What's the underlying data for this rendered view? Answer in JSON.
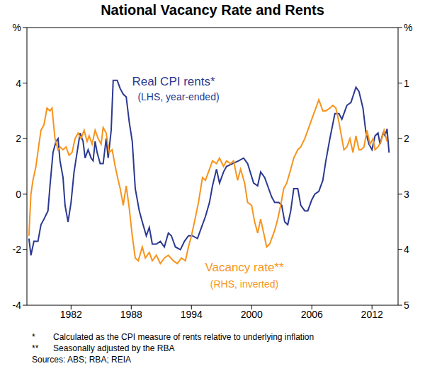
{
  "chart_data": {
    "type": "line",
    "title": "National Vacancy Rate and Rents",
    "xlim": [
      1977.6,
      2014.6
    ],
    "xticks": [
      1982,
      1988,
      1994,
      2000,
      2006,
      2012
    ],
    "ylim": [
      -4,
      6
    ],
    "yticks": [
      -4,
      -2,
      0,
      2,
      4,
      {
        "value": 6,
        "label": "%"
      }
    ],
    "y2lim": [
      5,
      0
    ],
    "y2ticks": [
      5,
      4,
      3,
      2,
      1,
      {
        "value": 0,
        "label": "%"
      }
    ],
    "grid": false,
    "series": [
      {
        "name": "Real CPI rents*",
        "note": "(LHS, year-ended)",
        "color": "#2b3990",
        "axis": "y",
        "x": [
          1977.8,
          1978.0,
          1978.3,
          1978.7,
          1979.0,
          1979.3,
          1979.7,
          1979.9,
          1980.2,
          1980.5,
          1980.7,
          1980.9,
          1981.2,
          1981.4,
          1981.7,
          1982.0,
          1982.3,
          1982.6,
          1982.9,
          1983.2,
          1983.4,
          1983.7,
          1984.0,
          1984.2,
          1984.4,
          1984.6,
          1984.9,
          1985.2,
          1985.5,
          1985.7,
          1986.0,
          1986.2,
          1986.6,
          1986.9,
          1987.2,
          1987.5,
          1987.8,
          1988.1,
          1988.4,
          1988.8,
          1989.1,
          1989.5,
          1989.8,
          1990.1,
          1990.5,
          1990.9,
          1991.3,
          1991.7,
          1992.0,
          1992.4,
          1992.9,
          1993.3,
          1993.7,
          1994.1,
          1994.6,
          1995.0,
          1995.4,
          1995.8,
          1996.1,
          1996.5,
          1996.8,
          1997.2,
          1997.5,
          1998.1,
          1998.7,
          1999.2,
          1999.6,
          2000.2,
          2000.6,
          2000.9,
          2001.3,
          2001.6,
          2002.0,
          2002.3,
          2002.7,
          2003.0,
          2003.3,
          2003.6,
          2003.9,
          2004.2,
          2004.6,
          2004.9,
          2005.3,
          2005.6,
          2006.0,
          2006.3,
          2006.7,
          2007.1,
          2007.4,
          2007.8,
          2008.3,
          2008.7,
          2009.0,
          2009.5,
          2009.9,
          2010.4,
          2010.7,
          2011.1,
          2011.4,
          2011.7,
          2012.0,
          2012.3,
          2012.6,
          2012.8,
          2013.1,
          2013.3,
          2013.5,
          2013.7
        ],
        "values": [
          -1.6,
          -2.2,
          -1.7,
          -1.7,
          -1.1,
          -0.9,
          -0.6,
          0.3,
          1.5,
          1.9,
          2.0,
          1.2,
          0.6,
          -0.4,
          -1.0,
          -0.3,
          0.8,
          1.5,
          2.2,
          1.9,
          1.3,
          1.6,
          1.3,
          1.2,
          1.9,
          1.5,
          1.1,
          1.1,
          2.0,
          1.3,
          2.3,
          4.1,
          4.1,
          3.8,
          3.6,
          3.5,
          2.6,
          1.9,
          0.2,
          -0.6,
          -1.0,
          -1.5,
          -1.2,
          -1.8,
          -1.8,
          -1.7,
          -1.9,
          -1.4,
          -1.5,
          -1.9,
          -2.0,
          -1.7,
          -1.5,
          -1.5,
          -1.6,
          -1.2,
          -0.8,
          -0.3,
          0.3,
          0.9,
          0.4,
          0.8,
          1.0,
          1.1,
          1.2,
          1.3,
          1.1,
          0.4,
          0.3,
          0.8,
          0.6,
          0.3,
          -0.1,
          -0.3,
          -0.3,
          -0.4,
          -1.0,
          -1.1,
          -0.6,
          0.2,
          0.2,
          -0.4,
          -0.6,
          -0.6,
          -0.2,
          0.0,
          0.1,
          0.5,
          1.2,
          2.0,
          2.9,
          2.9,
          2.7,
          3.2,
          3.3,
          3.85,
          3.7,
          3.1,
          2.2,
          1.8,
          1.6,
          2.1,
          2.2,
          1.8,
          2.2,
          2.1,
          2.35,
          1.5
        ]
      },
      {
        "name": "Vacancy rate**",
        "note": "(RHS, inverted)",
        "color": "#f7941d",
        "axis": "y2",
        "x": [
          1977.8,
          1978.0,
          1978.2,
          1978.5,
          1978.8,
          1979.0,
          1979.3,
          1979.6,
          1979.9,
          1980.1,
          1980.4,
          1980.7,
          1980.9,
          1981.2,
          1981.5,
          1981.8,
          1982.1,
          1982.4,
          1982.7,
          1983.0,
          1983.3,
          1983.6,
          1983.8,
          1984.1,
          1984.4,
          1984.7,
          1985.0,
          1985.2,
          1985.5,
          1985.8,
          1986.1,
          1986.4,
          1986.7,
          1986.9,
          1987.2,
          1987.5,
          1987.8,
          1988.1,
          1988.4,
          1988.7,
          1989.1,
          1989.4,
          1989.8,
          1990.1,
          1990.5,
          1990.9,
          1991.3,
          1991.7,
          1992.2,
          1992.6,
          1993.0,
          1993.4,
          1993.7,
          1994.0,
          1994.3,
          1994.7,
          1995.1,
          1995.4,
          1995.8,
          1996.1,
          1996.5,
          1996.8,
          1997.2,
          1997.5,
          1997.9,
          1998.2,
          1998.6,
          1998.9,
          1999.3,
          1999.6,
          2000.0,
          2000.3,
          2000.6,
          2000.9,
          2001.2,
          2001.5,
          2001.8,
          2002.0,
          2002.3,
          2002.6,
          2002.9,
          2003.2,
          2003.5,
          2003.9,
          2004.2,
          2004.6,
          2004.9,
          2005.3,
          2005.6,
          2006.0,
          2006.3,
          2006.7,
          2007.1,
          2007.4,
          2007.8,
          2008.1,
          2008.4,
          2008.7,
          2009.0,
          2009.2,
          2009.5,
          2009.8,
          2010.1,
          2010.4,
          2010.7,
          2010.9,
          2011.2,
          2011.5,
          2011.8,
          2012.1,
          2012.3,
          2012.6,
          2012.9,
          2013.2,
          2013.5
        ],
        "values": [
          3.75,
          3.0,
          2.75,
          2.5,
          2.1,
          1.85,
          1.75,
          1.45,
          1.5,
          1.45,
          2.0,
          2.2,
          2.15,
          2.2,
          2.15,
          2.3,
          2.25,
          2.0,
          1.9,
          2.0,
          1.85,
          2.05,
          1.95,
          2.1,
          1.85,
          2.0,
          2.1,
          1.8,
          1.9,
          2.25,
          2.2,
          2.5,
          2.75,
          2.9,
          3.2,
          2.85,
          3.25,
          3.75,
          4.15,
          4.2,
          3.95,
          4.15,
          4.05,
          4.2,
          4.1,
          4.25,
          4.15,
          4.1,
          4.2,
          4.25,
          4.15,
          4.2,
          3.95,
          3.75,
          3.5,
          3.15,
          2.7,
          2.75,
          2.55,
          2.4,
          2.45,
          2.35,
          2.5,
          2.4,
          2.45,
          2.4,
          2.75,
          2.55,
          2.8,
          3.15,
          3.2,
          3.5,
          3.7,
          3.45,
          3.7,
          3.95,
          3.9,
          3.8,
          3.65,
          3.45,
          3.2,
          2.9,
          2.8,
          2.55,
          2.35,
          2.2,
          2.15,
          2.0,
          1.85,
          1.65,
          1.5,
          1.3,
          1.5,
          1.5,
          1.45,
          1.4,
          1.45,
          1.7,
          2.0,
          2.2,
          2.15,
          2.0,
          2.25,
          1.95,
          2.2,
          2.2,
          2.15,
          1.85,
          2.1,
          2.0,
          2.2,
          2.15,
          2.05,
          1.85,
          2.05
        ]
      }
    ],
    "footnotes": [
      {
        "mark": "*",
        "text": "Calculated as the CPI measure of rents relative to underlying inflation"
      },
      {
        "mark": "**",
        "text": "Seasonally adjusted by the RBA"
      }
    ],
    "source": "Sources: ABS; RBA; REIA"
  }
}
